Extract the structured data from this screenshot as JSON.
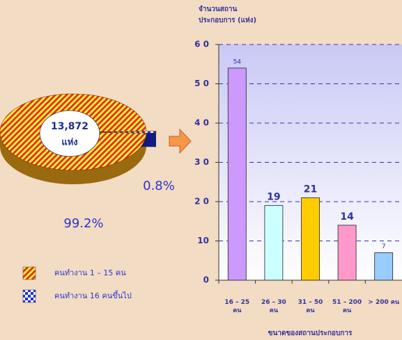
{
  "chart_data": [
    {
      "type": "pie",
      "series": [
        {
          "name": "คนทำงาน 1 – 15 คน",
          "color": "#e8231c",
          "pattern": "stripes",
          "values": [
            99.2
          ],
          "value_labels": [
            "99.2%"
          ]
        },
        {
          "name": "คนทำงาน 16 คนขึ้นไป",
          "color": "#1f2fd6",
          "pattern": "checker",
          "values": [
            0.8
          ],
          "value_labels": [
            "0.8%"
          ]
        }
      ],
      "annotations": [
        "13,872",
        "แห่ง"
      ]
    },
    {
      "type": "bar",
      "y_label": [
        "จำนวนสถาน",
        "ประกอบการ (แห่ง)"
      ],
      "x_label": "ขนาดของสถานประกอบการ",
      "categories": [
        "16 – 25 คน",
        "26 – 30 คน",
        "31 – 50 คน",
        "51 – 200 คน",
        "> 200 คน"
      ],
      "values": [
        54,
        19,
        21,
        14,
        7
      ],
      "colors": [
        "#cc99ff",
        "#ccffff",
        "#ffcc00",
        "#ff99cc",
        "#99ccff"
      ],
      "ylim": [
        0,
        60
      ],
      "yticks": [
        0,
        10,
        {
          "value": 20,
          "label": "2 0"
        },
        {
          "value": 30,
          "label": "3 0"
        },
        {
          "value": 40,
          "label": "4 0"
        },
        {
          "value": 50,
          "label": "5 0"
        },
        {
          "value": 60,
          "label": "6 0"
        }
      ],
      "grid": true
    }
  ]
}
